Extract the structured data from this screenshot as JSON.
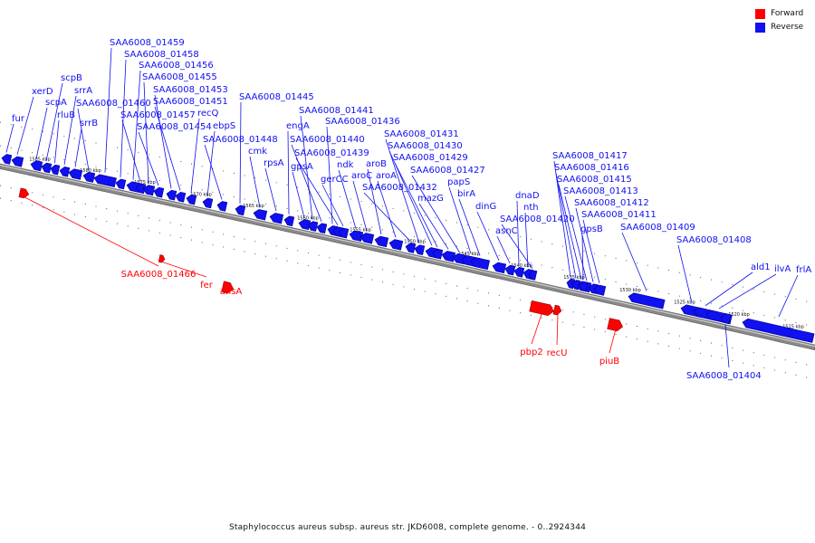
{
  "legend": {
    "forward_label": "Forward",
    "reverse_label": "Reverse",
    "forward_color": "#ff0000",
    "reverse_color": "#1010f0"
  },
  "caption": "Staphylococcus aureus subsp. aureus str. JKD6008, complete genome. - 0..2924344",
  "scale_labels": [
    "1585 kbp",
    "1580 kbp",
    "1575 kbp",
    "1570 kbp",
    "1565 kbp",
    "1560 kbp",
    "1555 kbp",
    "1550 kbp",
    "1545 kbp",
    "1540 kbp",
    "1535 kbp",
    "1530 kbp",
    "1525 kbp",
    "1520 kbp",
    "1515 kbp"
  ],
  "reverse_genes": [
    "fur",
    "xerD",
    "scpA",
    "scpB",
    "rluB",
    "srrA",
    "srrB",
    "SAA6008_01460",
    "SAA6008_01459",
    "SAA6008_01458",
    "SAA6008_01456",
    "SAA6008_01457",
    "SAA6008_01455",
    "SAA6008_01454",
    "SAA6008_01453",
    "SAA6008_01451",
    "recQ",
    "ebpS",
    "SAA6008_01448",
    "SAA6008_01445",
    "cmk",
    "rpsA",
    "engA",
    "gpsA",
    "SAA6008_01441",
    "SAA6008_01440",
    "SAA6008_01436",
    "SAA6008_01439",
    "gerCC",
    "ndk",
    "aroC",
    "aroB",
    "aroA",
    "SAA6008_01432",
    "SAA6008_01431",
    "SAA6008_01430",
    "SAA6008_01429",
    "mazG",
    "SAA6008_01427",
    "papS",
    "birA",
    "dinG",
    "asnC",
    "dnaD",
    "nth",
    "SAA6008_01420",
    "SAA6008_01417",
    "SAA6008_01416",
    "SAA6008_01415",
    "SAA6008_01413",
    "SAA6008_01412",
    "gpsB",
    "SAA6008_01411",
    "SAA6008_01409",
    "SAA6008_01408",
    "ald1",
    "ilvA",
    "frlA",
    "SAA6008_01404"
  ],
  "forward_genes": [
    "SAA6008_01466",
    "fer",
    "ansA",
    "pbp2",
    "recU",
    "piuB"
  ]
}
